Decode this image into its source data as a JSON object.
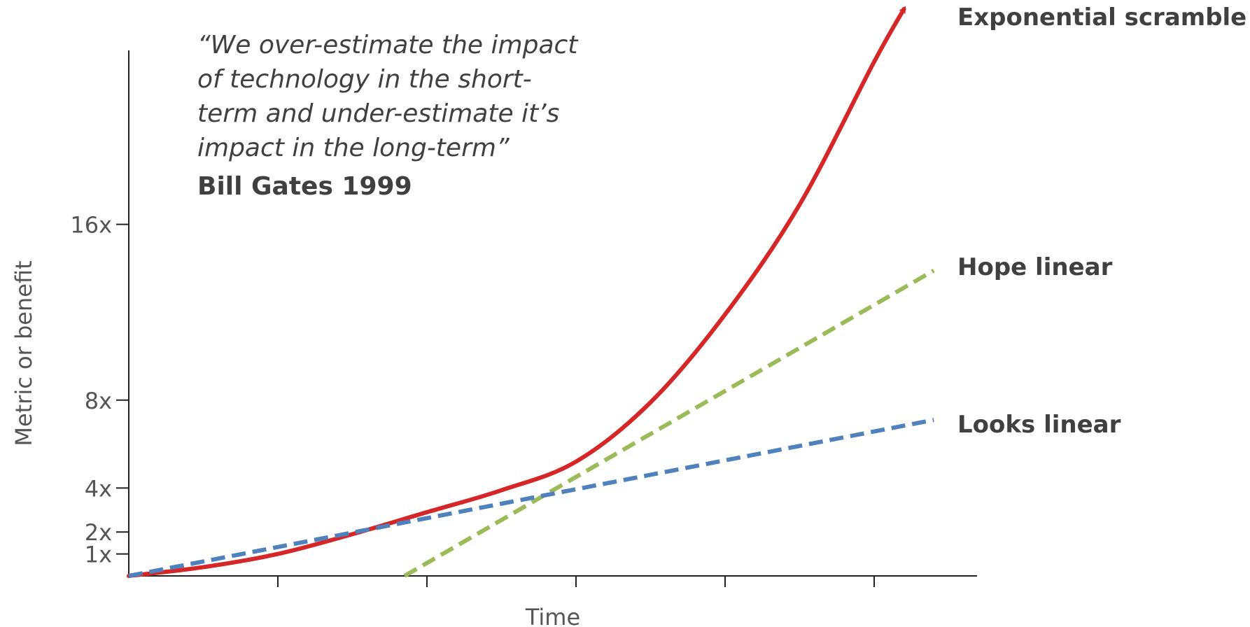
{
  "quote": {
    "lines": [
      "“We over-estimate the impact",
      "of technology in the short-",
      "term and under-estimate it’s",
      "impact in the long-term”"
    ],
    "attribution": "Bill Gates 1999"
  },
  "chart_data": {
    "type": "line",
    "xlabel": "Time",
    "ylabel": "Metric or benefit",
    "xlim": [
      0,
      6
    ],
    "ylim": [
      0,
      25
    ],
    "x_ticks": [
      1,
      2,
      3,
      4,
      5
    ],
    "x_tick_labels": [
      "",
      "",
      "",
      "",
      ""
    ],
    "y_ticks": [
      1,
      2,
      4,
      8,
      16
    ],
    "y_tick_labels": [
      "1x",
      "2x",
      "4x",
      "8x",
      "16x"
    ],
    "grid": false,
    "legend": "none",
    "series": [
      {
        "name": "Exponential scramble",
        "color": "#d62728",
        "style": "solid",
        "arrow": true,
        "x": [
          0,
          0.5,
          1.0,
          1.5,
          2.0,
          2.5,
          3.0,
          3.5,
          4.0,
          4.5,
          5.0,
          5.2
        ],
        "y": [
          0,
          0.4,
          1.0,
          1.9,
          2.9,
          3.9,
          5.2,
          7.9,
          11.9,
          16.9,
          23.4,
          25.8
        ]
      },
      {
        "name": "Hope linear",
        "color": "#9bbb59",
        "style": "dashed",
        "x": [
          1.85,
          5.4
        ],
        "y": [
          0,
          13.9
        ]
      },
      {
        "name": "Looks linear",
        "color": "#4f81bd",
        "style": "dashed",
        "x": [
          0,
          5.4
        ],
        "y": [
          0,
          7.1
        ]
      }
    ]
  }
}
